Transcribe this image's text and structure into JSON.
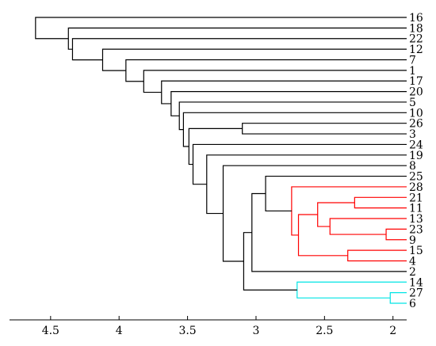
{
  "chart_data": {
    "type": "dendrogram",
    "orientation": "horizontal-reversed",
    "xlim": [
      4.8,
      1.9
    ],
    "x_ticks": [
      4.5,
      4,
      3.5,
      3,
      2.5,
      2
    ],
    "x_tick_labels": [
      "4.5",
      "4",
      "3.5",
      "3",
      "2.5",
      "2"
    ],
    "leaf_order": [
      "16",
      "18",
      "22",
      "12",
      "7",
      "1",
      "17",
      "20",
      "5",
      "10",
      "26",
      "3",
      "24",
      "19",
      "8",
      "25",
      "28",
      "21",
      "11",
      "13",
      "23",
      "9",
      "15",
      "4",
      "2",
      "14",
      "27",
      "6"
    ],
    "cluster_colors": {
      "default": "#000000",
      "red": "#ff0000",
      "cyan": "#00e5e5"
    },
    "merges": [
      {
        "id": "m1",
        "a": "21",
        "b": "11",
        "height": 2.28,
        "color": "red"
      },
      {
        "id": "m2",
        "a": "23",
        "b": "9",
        "height": 2.05,
        "color": "red"
      },
      {
        "id": "m3",
        "a": "13",
        "b": "m2",
        "height": 2.46,
        "color": "red"
      },
      {
        "id": "m4",
        "a": "m1",
        "b": "m3",
        "height": 2.55,
        "color": "red"
      },
      {
        "id": "m5",
        "a": "15",
        "b": "4",
        "height": 2.33,
        "color": "red"
      },
      {
        "id": "m6",
        "a": "m4",
        "b": "m5",
        "height": 2.69,
        "color": "red"
      },
      {
        "id": "m7",
        "a": "28",
        "b": "m6",
        "height": 2.74,
        "color": "red"
      },
      {
        "id": "m8",
        "a": "25",
        "b": "m7",
        "height": 2.93,
        "color": "default"
      },
      {
        "id": "m9",
        "a": "m8",
        "b": "2",
        "height": 3.03,
        "color": "default"
      },
      {
        "id": "m10",
        "a": "27",
        "b": "6",
        "height": 2.02,
        "color": "cyan"
      },
      {
        "id": "m11",
        "a": "14",
        "b": "m10",
        "height": 2.7,
        "color": "cyan"
      },
      {
        "id": "m12",
        "a": "m9",
        "b": "m11",
        "height": 3.09,
        "color": "default"
      },
      {
        "id": "m13",
        "a": "8",
        "b": "m12",
        "height": 3.24,
        "color": "default"
      },
      {
        "id": "m14",
        "a": "19",
        "b": "m13",
        "height": 3.36,
        "color": "default"
      },
      {
        "id": "m15",
        "a": "24",
        "b": "m14",
        "height": 3.46,
        "color": "default"
      },
      {
        "id": "m16",
        "a": "26",
        "b": "3",
        "height": 3.1,
        "color": "default"
      },
      {
        "id": "m17",
        "a": "m16",
        "b": "m15",
        "height": 3.49,
        "color": "default"
      },
      {
        "id": "m18",
        "a": "10",
        "b": "m17",
        "height": 3.53,
        "color": "default"
      },
      {
        "id": "m19",
        "a": "5",
        "b": "m18",
        "height": 3.56,
        "color": "default"
      },
      {
        "id": "m20",
        "a": "20",
        "b": "m19",
        "height": 3.62,
        "color": "default"
      },
      {
        "id": "m21",
        "a": "17",
        "b": "m20",
        "height": 3.69,
        "color": "default"
      },
      {
        "id": "m22",
        "a": "1",
        "b": "m21",
        "height": 3.82,
        "color": "default"
      },
      {
        "id": "m23",
        "a": "7",
        "b": "m22",
        "height": 3.95,
        "color": "default"
      },
      {
        "id": "m24",
        "a": "12",
        "b": "m23",
        "height": 4.12,
        "color": "default"
      },
      {
        "id": "m25",
        "a": "22",
        "b": "m24",
        "height": 4.34,
        "color": "default"
      },
      {
        "id": "m26",
        "a": "18",
        "b": "m25",
        "height": 4.37,
        "color": "default"
      },
      {
        "id": "m27",
        "a": "16",
        "b": "m26",
        "height": 4.61,
        "color": "default"
      }
    ]
  }
}
